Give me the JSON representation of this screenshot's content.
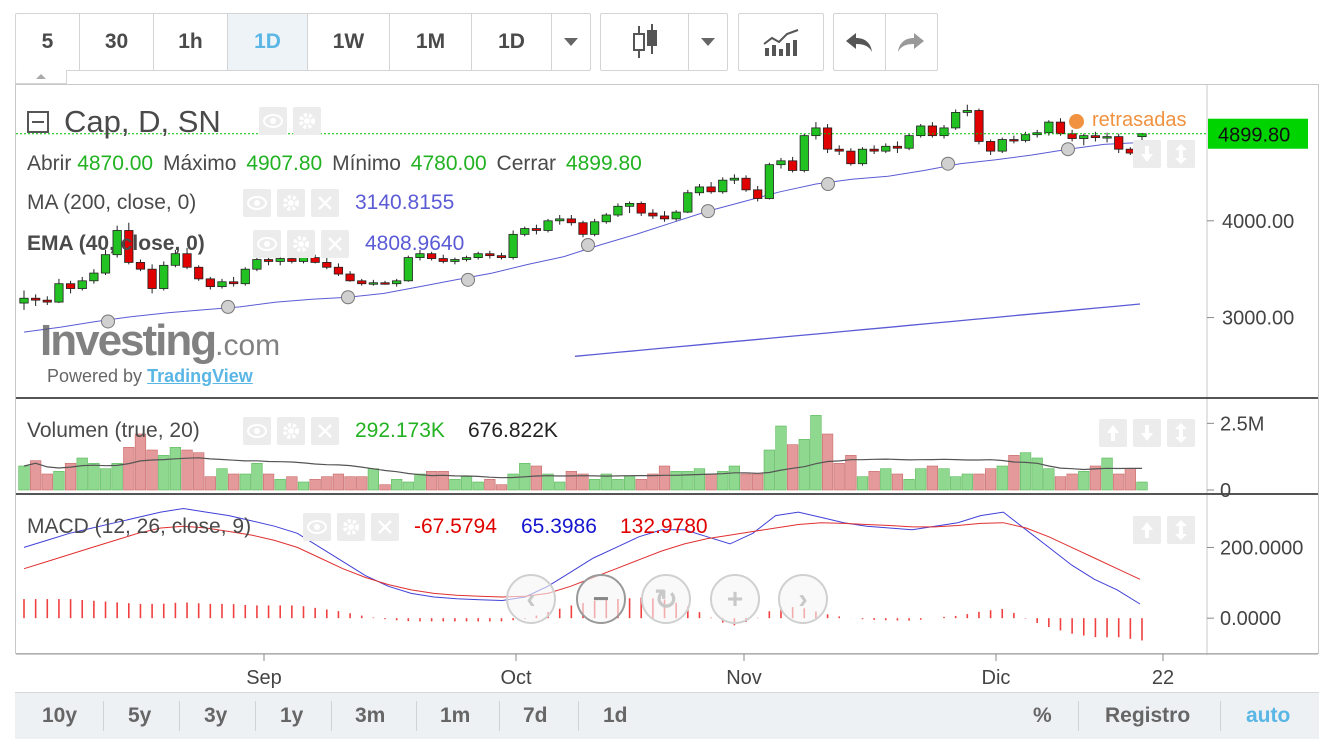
{
  "toolbar": {
    "intervals": [
      "5",
      "30",
      "1h",
      "1D",
      "1W",
      "1M",
      "1D"
    ],
    "active_interval": 3
  },
  "legend": {
    "symbol": "Cap, D, SN",
    "ohlc": {
      "open_label": "Abrir",
      "open": "4870.00",
      "high_label": "Máximo",
      "high": "4907.80",
      "low_label": "Mínimo",
      "low": "4780.00",
      "close_label": "Cerrar",
      "close": "4899.80"
    },
    "ma": {
      "label": "MA (200, close, 0)",
      "value": "3140.8155"
    },
    "ema": {
      "label": "EMA (40, close, 0)",
      "value": "4808.9640"
    },
    "delayed": "retrasadas"
  },
  "watermark": {
    "brand": "Investing",
    "tld": ".com",
    "powered": "Powered by",
    "tv": "TradingView"
  },
  "price_axis": {
    "ticks": [
      "4000.00",
      "3000.00"
    ],
    "last_price": "4899.80"
  },
  "volume": {
    "label": "Volumen (true, 20)",
    "value1": "292.173K",
    "value2": "676.822K",
    "ticks": [
      "2.5M",
      "0"
    ]
  },
  "macd": {
    "label": "MACD (12, 26, close, 9)",
    "v1": "-67.5794",
    "v2": "65.3986",
    "v3": "132.9780",
    "ticks": [
      "200.0000",
      "0.0000"
    ]
  },
  "time_axis": {
    "labels": [
      "Sep",
      "Oct",
      "Nov",
      "Dic",
      "22"
    ]
  },
  "ranges": [
    "10y",
    "5y",
    "3y",
    "1y",
    "3m",
    "1m",
    "7d",
    "1d"
  ],
  "bottom_right": {
    "percent": "%",
    "log": "Registro",
    "auto": "auto"
  },
  "colors": {
    "up": "#22c222",
    "down": "#e00000",
    "ma": "#5b5bd6",
    "delayed": "#f0923f",
    "price_tag": "#00d400",
    "accent": "#59b6e5"
  },
  "chart_data": {
    "type": "candlestick",
    "price_range": [
      2200,
      5300
    ],
    "candles": [
      [
        3150,
        3280,
        3080,
        3200
      ],
      [
        3200,
        3240,
        3120,
        3180
      ],
      [
        3180,
        3220,
        3130,
        3160
      ],
      [
        3160,
        3400,
        3150,
        3350
      ],
      [
        3350,
        3380,
        3250,
        3300
      ],
      [
        3300,
        3420,
        3280,
        3380
      ],
      [
        3380,
        3500,
        3350,
        3460
      ],
      [
        3460,
        3700,
        3440,
        3650
      ],
      [
        3650,
        3950,
        3620,
        3900
      ],
      [
        3900,
        3980,
        3550,
        3570
      ],
      [
        3570,
        3600,
        3480,
        3500
      ],
      [
        3500,
        3550,
        3250,
        3300
      ],
      [
        3300,
        3580,
        3280,
        3540
      ],
      [
        3540,
        3700,
        3520,
        3660
      ],
      [
        3660,
        3720,
        3500,
        3520
      ],
      [
        3520,
        3540,
        3380,
        3400
      ],
      [
        3400,
        3420,
        3290,
        3320
      ],
      [
        3320,
        3400,
        3300,
        3370
      ],
      [
        3370,
        3420,
        3320,
        3350
      ],
      [
        3350,
        3520,
        3330,
        3500
      ],
      [
        3500,
        3660,
        3480,
        3600
      ],
      [
        3600,
        3640,
        3540,
        3580
      ],
      [
        3580,
        3640,
        3540,
        3610
      ],
      [
        3610,
        3640,
        3560,
        3580
      ],
      [
        3580,
        3650,
        3560,
        3620
      ],
      [
        3620,
        3650,
        3560,
        3570
      ],
      [
        3570,
        3620,
        3500,
        3520
      ],
      [
        3520,
        3560,
        3430,
        3450
      ],
      [
        3450,
        3480,
        3370,
        3380
      ],
      [
        3380,
        3400,
        3330,
        3350
      ],
      [
        3350,
        3390,
        3330,
        3360
      ],
      [
        3360,
        3380,
        3340,
        3350
      ],
      [
        3350,
        3400,
        3320,
        3380
      ],
      [
        3380,
        3640,
        3370,
        3620
      ],
      [
        3620,
        3700,
        3590,
        3660
      ],
      [
        3660,
        3680,
        3590,
        3610
      ],
      [
        3610,
        3650,
        3560,
        3580
      ],
      [
        3580,
        3620,
        3550,
        3600
      ],
      [
        3600,
        3640,
        3580,
        3620
      ],
      [
        3620,
        3680,
        3600,
        3660
      ],
      [
        3660,
        3690,
        3610,
        3640
      ],
      [
        3640,
        3670,
        3600,
        3620
      ],
      [
        3620,
        3900,
        3600,
        3860
      ],
      [
        3860,
        3940,
        3840,
        3920
      ],
      [
        3920,
        3960,
        3860,
        3900
      ],
      [
        3900,
        4020,
        3880,
        4000
      ],
      [
        4000,
        4060,
        3960,
        4020
      ],
      [
        4020,
        4060,
        3950,
        3980
      ],
      [
        3980,
        4000,
        3830,
        3860
      ],
      [
        3860,
        4020,
        3840,
        3990
      ],
      [
        3990,
        4080,
        3970,
        4060
      ],
      [
        4060,
        4180,
        4040,
        4150
      ],
      [
        4150,
        4200,
        4080,
        4180
      ],
      [
        4180,
        4200,
        4050,
        4080
      ],
      [
        4080,
        4120,
        4020,
        4050
      ],
      [
        4050,
        4100,
        3990,
        4020
      ],
      [
        4020,
        4110,
        4000,
        4090
      ],
      [
        4090,
        4320,
        4080,
        4290
      ],
      [
        4290,
        4380,
        4260,
        4350
      ],
      [
        4350,
        4400,
        4280,
        4300
      ],
      [
        4300,
        4450,
        4280,
        4420
      ],
      [
        4420,
        4480,
        4380,
        4440
      ],
      [
        4440,
        4470,
        4300,
        4320
      ],
      [
        4320,
        4360,
        4200,
        4230
      ],
      [
        4230,
        4600,
        4220,
        4580
      ],
      [
        4580,
        4650,
        4540,
        4620
      ],
      [
        4620,
        4660,
        4500,
        4520
      ],
      [
        4520,
        4900,
        4500,
        4880
      ],
      [
        4880,
        5020,
        4840,
        4960
      ],
      [
        4960,
        5000,
        4700,
        4740
      ],
      [
        4740,
        4780,
        4680,
        4720
      ],
      [
        4720,
        4750,
        4570,
        4590
      ],
      [
        4590,
        4760,
        4570,
        4740
      ],
      [
        4740,
        4780,
        4690,
        4720
      ],
      [
        4720,
        4800,
        4700,
        4770
      ],
      [
        4770,
        4820,
        4700,
        4750
      ],
      [
        4750,
        4900,
        4730,
        4880
      ],
      [
        4880,
        5000,
        4860,
        4980
      ],
      [
        4980,
        5020,
        4860,
        4880
      ],
      [
        4880,
        4990,
        4850,
        4960
      ],
      [
        4960,
        5150,
        4940,
        5120
      ],
      [
        5120,
        5200,
        5080,
        5140
      ],
      [
        5140,
        5160,
        4790,
        4820
      ],
      [
        4820,
        4840,
        4680,
        4720
      ],
      [
        4720,
        4860,
        4700,
        4840
      ],
      [
        4840,
        4880,
        4800,
        4830
      ],
      [
        4830,
        4920,
        4810,
        4890
      ],
      [
        4890,
        4940,
        4860,
        4910
      ],
      [
        4910,
        5040,
        4880,
        5020
      ],
      [
        5020,
        5060,
        4880,
        4900
      ],
      [
        4900,
        4940,
        4820,
        4850
      ],
      [
        4850,
        4900,
        4780,
        4880
      ],
      [
        4880,
        4920,
        4820,
        4860
      ],
      [
        4860,
        4910,
        4810,
        4870
      ],
      [
        4870,
        4900,
        4700,
        4740
      ],
      [
        4740,
        4760,
        4680,
        4700
      ],
      [
        4870,
        4907.8,
        4780,
        4899.8
      ]
    ],
    "ma200": [
      2600,
      2620,
      2640,
      2660,
      2680,
      2700,
      2720,
      2740,
      2760,
      2780,
      2800,
      2820,
      2840,
      2860,
      2880,
      2900,
      2920,
      2940,
      2960,
      2980,
      3000,
      3020,
      3040,
      3060,
      3080,
      3100,
      3120,
      3140.8
    ],
    "ema40": [
      2850,
      2900,
      2960,
      3010,
      3050,
      3080,
      3110,
      3160,
      3190,
      3210,
      3250,
      3320,
      3390,
      3460,
      3550,
      3630,
      3750,
      3860,
      3980,
      4100,
      4200,
      4300,
      4380,
      4430,
      4460,
      4520,
      4590,
      4630,
      4680,
      4740,
      4790,
      4809
    ],
    "volume": [
      0.9,
      1.1,
      0.6,
      0.7,
      1.0,
      1.2,
      1.0,
      0.8,
      1.0,
      1.6,
      2.1,
      1.5,
      1.3,
      1.6,
      1.5,
      1.4,
      0.5,
      0.8,
      0.6,
      0.6,
      1.0,
      0.6,
      0.4,
      0.5,
      0.3,
      0.4,
      0.5,
      0.6,
      0.5,
      0.5,
      0.8,
      0.2,
      0.4,
      0.3,
      0.6,
      0.7,
      0.7,
      0.4,
      0.5,
      0.3,
      0.4,
      0.2,
      0.6,
      1.0,
      0.9,
      0.6,
      0.3,
      0.7,
      0.6,
      0.4,
      0.6,
      0.4,
      0.5,
      0.4,
      0.6,
      0.9,
      0.7,
      0.7,
      0.8,
      0.6,
      0.7,
      0.9,
      0.6,
      0.6,
      1.5,
      2.4,
      1.7,
      1.9,
      2.8,
      2.1,
      1.0,
      1.3,
      0.5,
      0.7,
      0.8,
      0.6,
      0.4,
      0.8,
      0.9,
      0.8,
      0.5,
      0.6,
      0.6,
      0.8,
      0.9,
      1.3,
      1.4,
      1.2,
      0.8,
      0.5,
      0.6,
      0.7,
      0.9,
      1.2,
      0.6,
      0.8,
      0.3
    ],
    "macd_line": [
      200,
      220,
      240,
      255,
      270,
      285,
      300,
      310,
      300,
      290,
      275,
      260,
      240,
      200,
      160,
      120,
      90,
      70,
      60,
      55,
      52,
      50,
      60,
      90,
      130,
      170,
      200,
      230,
      250,
      250,
      230,
      210,
      240,
      290,
      300,
      285,
      270,
      260,
      255,
      250,
      260,
      270,
      290,
      300,
      250,
      200,
      150,
      110,
      80,
      40
    ],
    "signal_line": [
      140,
      160,
      180,
      200,
      220,
      240,
      255,
      260,
      255,
      245,
      235,
      220,
      200,
      170,
      140,
      115,
      95,
      80,
      70,
      65,
      62,
      60,
      62,
      70,
      90,
      115,
      140,
      165,
      190,
      210,
      225,
      235,
      245,
      255,
      265,
      270,
      268,
      265,
      262,
      258,
      258,
      262,
      268,
      270,
      255,
      230,
      200,
      170,
      140,
      110
    ],
    "macd_ylim": [
      -90,
      320
    ],
    "xlabels": [
      "Sep",
      "Oct",
      "Nov",
      "Dic",
      "22"
    ]
  }
}
